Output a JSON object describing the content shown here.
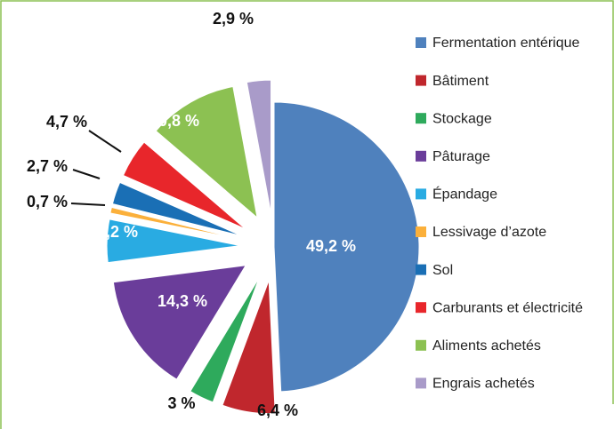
{
  "chart_data": {
    "type": "pie",
    "categories": [
      "Fermentation entérique",
      "Bâtiment",
      "Stockage",
      "Pâturage",
      "Épandage",
      "Lessivage d’azote",
      "Sol",
      "Carburants et électricité",
      "Aliments achetés",
      "Engrais achetés"
    ],
    "values": [
      49.2,
      6.4,
      3,
      14.3,
      5.2,
      0.7,
      2.7,
      4.7,
      10.8,
      2.9
    ],
    "value_labels": [
      "49,2 %",
      "6,4 %",
      "3 %",
      "14,3 %",
      "5,2 %",
      "0,7 %",
      "2,7 %",
      "4,7 %",
      "10,8 %",
      "2,9 %"
    ],
    "colors": [
      "#4f81bd",
      "#c0272d",
      "#2eaa5c",
      "#6a3d9a",
      "#29abe2",
      "#fbb03b",
      "#1a6fb5",
      "#e8262b",
      "#8cc152",
      "#a99bc9"
    ],
    "legend": "right"
  }
}
